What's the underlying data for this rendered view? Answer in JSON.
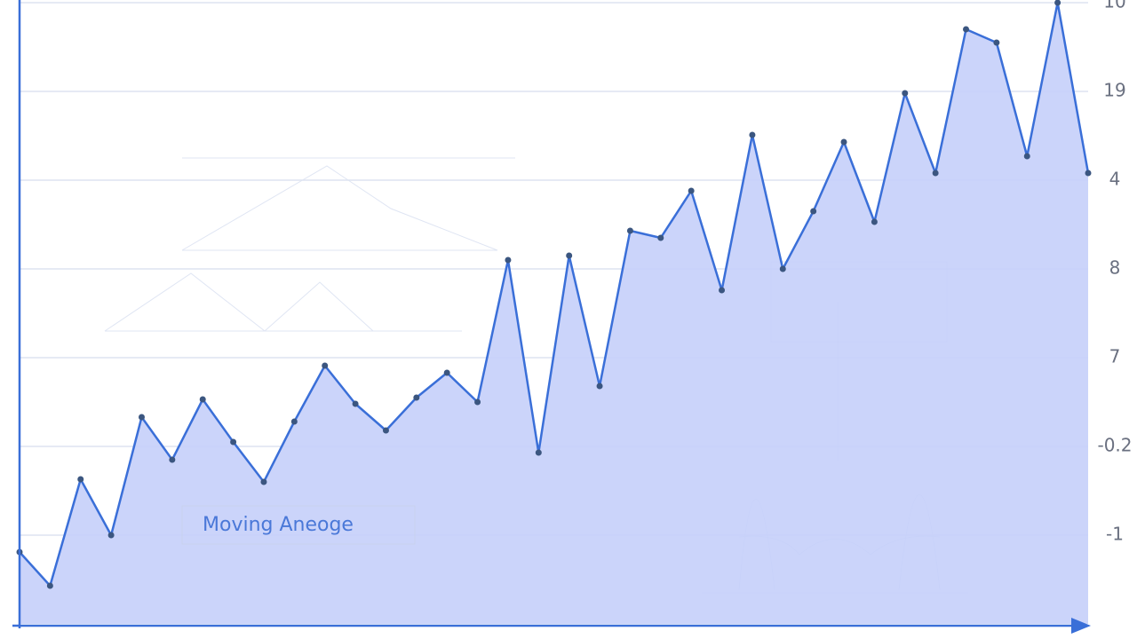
{
  "chart_data": {
    "type": "area",
    "legend_label": "Moving Aneoge",
    "categories": [
      null,
      null,
      null,
      null,
      null,
      null,
      null,
      null,
      null,
      null,
      null,
      null,
      null,
      null,
      null,
      null,
      null,
      null,
      null,
      null,
      null,
      null,
      null,
      null,
      null,
      null,
      null,
      null,
      null,
      null,
      null,
      null,
      null,
      null,
      null,
      null
    ],
    "values": [
      0.81,
      0.43,
      1.63,
      1.0,
      2.33,
      1.85,
      2.53,
      2.05,
      1.6,
      2.28,
      2.91,
      2.48,
      2.18,
      2.55,
      2.83,
      2.5,
      4.1,
      1.93,
      4.15,
      2.68,
      4.43,
      4.35,
      4.88,
      3.76,
      5.51,
      4.0,
      4.65,
      5.43,
      4.53,
      5.98,
      5.08,
      6.7,
      6.55,
      5.27,
      7.0,
      5.08
    ],
    "color": "#3a6fd8",
    "fill": "#c5cffa",
    "ylim": [
      0,
      7
    ],
    "yticks": [
      {
        "value": 1,
        "label": "-1"
      },
      {
        "value": 2,
        "label": "-0.2"
      },
      {
        "value": 3,
        "label": "7"
      },
      {
        "value": 4,
        "label": "8"
      },
      {
        "value": 5,
        "label": "4"
      },
      {
        "value": 6,
        "label": "19"
      },
      {
        "value": 7,
        "label": "10"
      }
    ],
    "grid": true
  }
}
